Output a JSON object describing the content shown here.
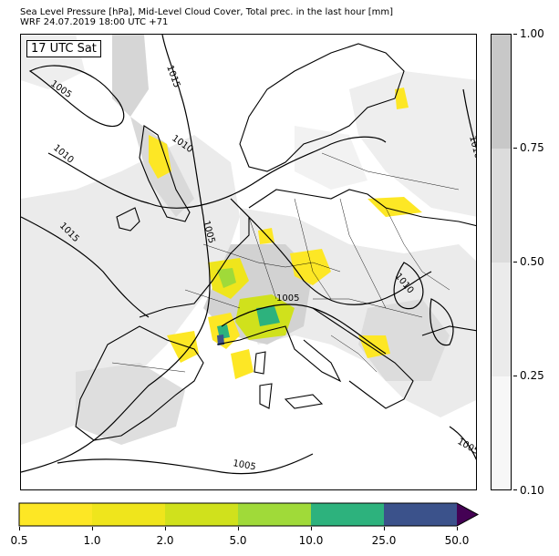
{
  "header": {
    "title_line1": "Sea Level Pressure [hPa], Mid-Level Cloud Cover, Total prec. in the last hour [mm]",
    "title_line2": "WRF 24.07.2019 18:00 UTC +71"
  },
  "map": {
    "time_badge": "17 UTC Sat",
    "isobar_labels": [
      "1005",
      "1015",
      "1010",
      "1010",
      "1015",
      "1005",
      "1005",
      "1010",
      "1010",
      "1005",
      "1005"
    ]
  },
  "cloud_colorbar": {
    "labels": [
      "1.00",
      "0.75",
      "0.50",
      "0.25",
      "0.10"
    ],
    "colors": [
      "#c8c8c8",
      "#dcdcdc",
      "#ebebeb",
      "#f7f7f7"
    ]
  },
  "precip_colorbar": {
    "labels": [
      "0.5",
      "1.0",
      "2.0",
      "5.0",
      "10.0",
      "25.0",
      "50.0"
    ],
    "colors": [
      "#fde725",
      "#efe51c",
      "#d0e11c",
      "#a0da39",
      "#2db27d",
      "#3b528b",
      "#440154"
    ]
  }
}
